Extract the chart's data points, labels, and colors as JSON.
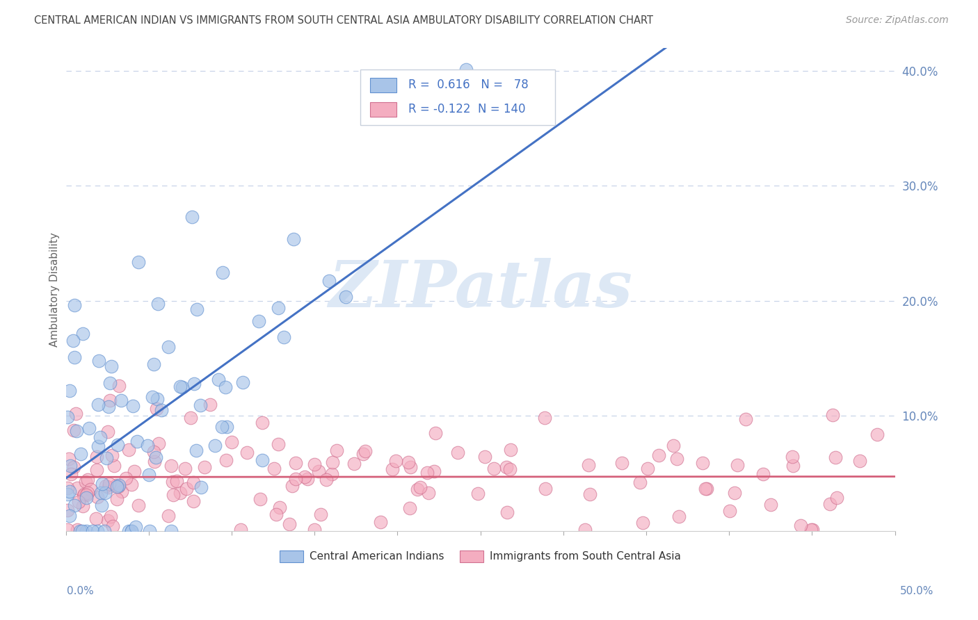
{
  "title": "CENTRAL AMERICAN INDIAN VS IMMIGRANTS FROM SOUTH CENTRAL ASIA AMBULATORY DISABILITY CORRELATION CHART",
  "source": "Source: ZipAtlas.com",
  "ylabel": "Ambulatory Disability",
  "xlim": [
    0.0,
    0.5
  ],
  "ylim": [
    0.0,
    0.42
  ],
  "blue_R": 0.616,
  "blue_N": 78,
  "pink_R": -0.122,
  "pink_N": 140,
  "blue_label": "Central American Indians",
  "pink_label": "Immigrants from South Central Asia",
  "blue_color": "#a8c4e8",
  "pink_color": "#f4adc0",
  "blue_line_color": "#4472c4",
  "pink_line_color": "#d4607a",
  "blue_edge_color": "#6090d0",
  "pink_edge_color": "#d07090",
  "watermark_color": "#dde8f5",
  "background_color": "#ffffff",
  "grid_color": "#c8d4e8",
  "title_color": "#444444",
  "axis_color": "#6688bb",
  "blue_seed": 10,
  "pink_seed": 77
}
